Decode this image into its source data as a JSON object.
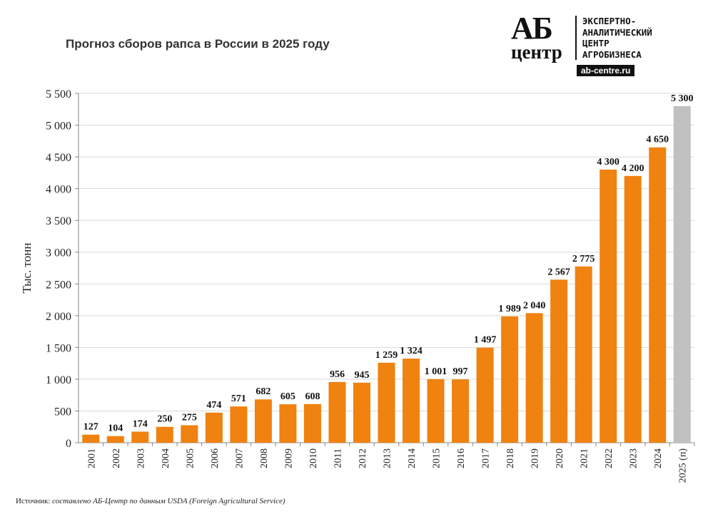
{
  "logo": {
    "ab": "АБ",
    "centr": "центр",
    "lines": [
      "ЭКСПЕРТНО-",
      "АНАЛИТИЧЕСКИЙ",
      "ЦЕНТР",
      "АГРОБИЗНЕСА"
    ],
    "url": "ab-centre.ru"
  },
  "source": {
    "label": "Источник:",
    "text": "составлено АБ-Центр по данным USDA (Foreign Agricultural Service)"
  },
  "chart_data": {
    "type": "bar",
    "title": "Прогноз сборов рапса в России в 2025 году",
    "xlabel": "",
    "ylabel": "Тыс. тонн",
    "ylim": [
      0,
      5500
    ],
    "yticks": [
      0,
      500,
      1000,
      1500,
      2000,
      2500,
      3000,
      3500,
      4000,
      4500,
      5000,
      5500
    ],
    "ytick_labels": [
      "0",
      "500",
      "1 000",
      "1 500",
      "2 000",
      "2 500",
      "3 000",
      "3 500",
      "4 000",
      "4 500",
      "5 000",
      "5 500"
    ],
    "categories": [
      "2001",
      "2002",
      "2003",
      "2004",
      "2005",
      "2006",
      "2007",
      "2008",
      "2009",
      "2010",
      "2011",
      "2012",
      "2013",
      "2014",
      "2015",
      "2016",
      "2017",
      "2018",
      "2019",
      "2020",
      "2021",
      "2022",
      "2023",
      "2024",
      "2025 (п)"
    ],
    "values": [
      127,
      104,
      174,
      250,
      275,
      474,
      571,
      682,
      605,
      608,
      956,
      945,
      1259,
      1324,
      1001,
      997,
      1497,
      1989,
      2040,
      2567,
      2775,
      4300,
      4200,
      4650,
      5300
    ],
    "data_labels": [
      "127",
      "104",
      "174",
      "250",
      "275",
      "474",
      "571",
      "682",
      "605",
      "608",
      "956",
      "945",
      "1 259",
      "1 324",
      "1 001",
      "997",
      "1 497",
      "1 989",
      "2 040",
      "2 567",
      "2 775",
      "4 300",
      "4 200",
      "4 650",
      "5 300"
    ],
    "colors": {
      "actual": "#f0820f",
      "forecast": "#c0c0c0"
    },
    "grid": true
  }
}
